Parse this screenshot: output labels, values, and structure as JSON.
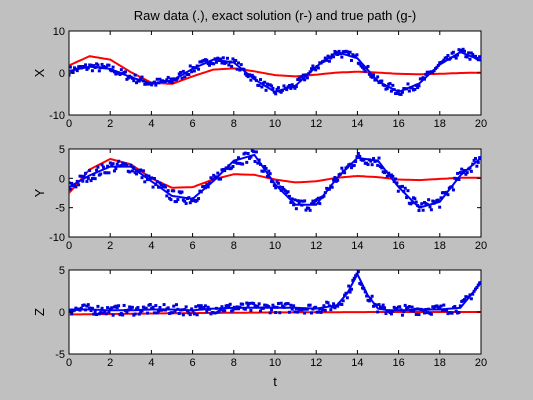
{
  "chart_data": [
    {
      "type": "line",
      "title": "Raw data (.), exact solution (r-) and true path (g-)",
      "xlabel": "",
      "ylabel": "X",
      "xlim": [
        0,
        20
      ],
      "ylim": [
        -10,
        10
      ],
      "xticks": [
        "0",
        "2",
        "4",
        "6",
        "8",
        "10",
        "12",
        "14",
        "16",
        "18",
        "20"
      ],
      "yticks": [
        "10",
        "0",
        "-10"
      ],
      "grid": false,
      "series": [
        {
          "color": "#ff0000",
          "style": "line",
          "x": [
            0,
            1,
            2,
            3,
            4,
            5,
            6,
            7,
            8,
            9,
            10,
            11,
            12,
            13,
            14,
            15,
            16,
            17,
            18,
            19,
            20
          ],
          "y": [
            1.8,
            4.0,
            3.2,
            0.2,
            -2.3,
            -2.6,
            -0.8,
            0.8,
            1.1,
            0.4,
            -0.5,
            -0.8,
            -0.4,
            0.1,
            0.3,
            0.1,
            -0.2,
            -0.3,
            -0.2,
            0,
            0.1
          ]
        },
        {
          "color": "#0000ff",
          "style": "line",
          "x": [
            0,
            1,
            2,
            3,
            4,
            5,
            6,
            7,
            8,
            9,
            10,
            11,
            12,
            13,
            14,
            15,
            16,
            17,
            18,
            19,
            20
          ],
          "y": [
            0.5,
            1.5,
            1.0,
            -1.0,
            -2.5,
            -1.8,
            1.0,
            3.2,
            2.5,
            -1.5,
            -4.5,
            -3.0,
            1.5,
            5.0,
            3.5,
            -2.0,
            -4.5,
            -2.5,
            2.0,
            5.0,
            3.0
          ]
        }
      ]
    },
    {
      "type": "line",
      "title": "",
      "xlabel": "",
      "ylabel": "Y",
      "xlim": [
        0,
        20
      ],
      "ylim": [
        -10,
        5
      ],
      "xticks": [
        "0",
        "2",
        "4",
        "6",
        "8",
        "10",
        "12",
        "14",
        "16",
        "18",
        "20"
      ],
      "yticks": [
        "5",
        "0",
        "-5",
        "-10"
      ],
      "grid": false,
      "series": [
        {
          "color": "#ff0000",
          "style": "line",
          "x": [
            0,
            1,
            2,
            3,
            4,
            5,
            6,
            7,
            8,
            9,
            10,
            11,
            12,
            13,
            14,
            15,
            16,
            17,
            18,
            19,
            20
          ],
          "y": [
            -2.5,
            1.5,
            3.3,
            2.4,
            0,
            -1.6,
            -1.5,
            -0.2,
            0.7,
            0.6,
            -0.2,
            -0.7,
            -0.5,
            0.1,
            0.4,
            0.2,
            -0.2,
            -0.3,
            -0.1,
            0.1,
            0.1
          ]
        },
        {
          "color": "#0000ff",
          "style": "line",
          "x": [
            0,
            1,
            2,
            3,
            4,
            5,
            6,
            7,
            8,
            9,
            10,
            11,
            12,
            13,
            14,
            15,
            16,
            17,
            18,
            19,
            20
          ],
          "y": [
            -1.5,
            0.5,
            2.0,
            2.0,
            -0.5,
            -3.0,
            -3.5,
            -0.5,
            3.0,
            4.0,
            -1.0,
            -4.5,
            -4.5,
            0,
            3.5,
            3.0,
            -1.5,
            -5.0,
            -4.0,
            0.5,
            3.5
          ]
        }
      ]
    },
    {
      "type": "line",
      "title": "",
      "xlabel": "t",
      "ylabel": "Z",
      "xlim": [
        0,
        20
      ],
      "ylim": [
        -5,
        5
      ],
      "xticks": [
        "0",
        "2",
        "4",
        "6",
        "8",
        "10",
        "12",
        "14",
        "16",
        "18",
        "20"
      ],
      "yticks": [
        "5",
        "0",
        "-5"
      ],
      "grid": false,
      "series": [
        {
          "color": "#ff0000",
          "style": "line",
          "x": [
            0,
            5,
            10,
            15,
            20
          ],
          "y": [
            -0.3,
            -0.15,
            -0.05,
            0,
            0
          ]
        },
        {
          "color": "#0000ff",
          "style": "line",
          "x": [
            0,
            1,
            2,
            3,
            4,
            5,
            6,
            7,
            8,
            9,
            10,
            11,
            12,
            13,
            13.5,
            14,
            14.5,
            15,
            15.5,
            16,
            17,
            18,
            19,
            19.5,
            20
          ],
          "y": [
            0.3,
            0.3,
            0.2,
            0.2,
            0.3,
            0.3,
            0.2,
            0.4,
            0.5,
            0.5,
            0.5,
            0.5,
            0.4,
            0.8,
            2.2,
            4.5,
            2.0,
            0.4,
            0.2,
            0.2,
            0.3,
            0.3,
            0.5,
            2.0,
            3.5
          ]
        }
      ]
    }
  ]
}
